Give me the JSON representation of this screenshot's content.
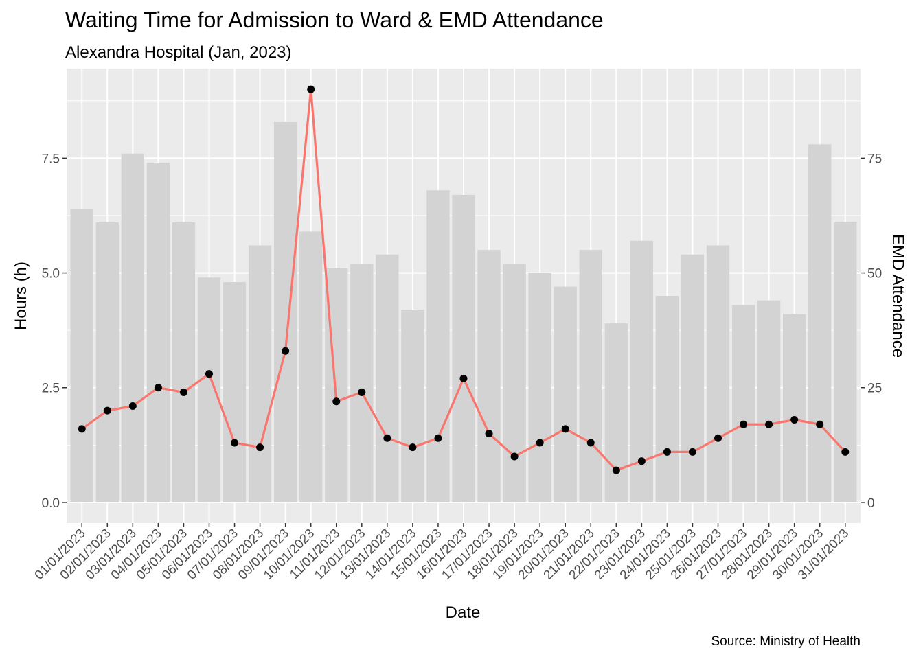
{
  "chart_data": {
    "type": "bar+line",
    "title": "Waiting Time for Admission to Ward & EMD Attendance",
    "subtitle": "Alexandra Hospital (Jan, 2023)",
    "xlabel": "Date",
    "ylabel": "Hours (h)",
    "y2label": "EMD Attendance",
    "caption": "Source: Ministry of Health",
    "categories": [
      "01/01/2023",
      "02/01/2023",
      "03/01/2023",
      "04/01/2023",
      "05/01/2023",
      "06/01/2023",
      "07/01/2023",
      "08/01/2023",
      "09/01/2023",
      "10/01/2023",
      "11/01/2023",
      "12/01/2023",
      "13/01/2023",
      "14/01/2023",
      "15/01/2023",
      "16/01/2023",
      "17/01/2023",
      "18/01/2023",
      "19/01/2023",
      "20/01/2023",
      "21/01/2023",
      "22/01/2023",
      "23/01/2023",
      "24/01/2023",
      "25/01/2023",
      "26/01/2023",
      "27/01/2023",
      "28/01/2023",
      "29/01/2023",
      "30/01/2023",
      "31/01/2023"
    ],
    "series": [
      {
        "kind": "bar",
        "axis": "right",
        "color": "#d3d3d3",
        "values": [
          64,
          61,
          76,
          74,
          61,
          49,
          48,
          56,
          83,
          59,
          51,
          52,
          54,
          42,
          68,
          67,
          55,
          52,
          50,
          47,
          55,
          39,
          57,
          45,
          54,
          56,
          43,
          44,
          41,
          78,
          61
        ]
      },
      {
        "kind": "line",
        "axis": "left",
        "color": "#f8766d",
        "point_color": "#000000",
        "values": [
          1.6,
          2.0,
          2.1,
          2.5,
          2.4,
          2.8,
          1.3,
          1.2,
          3.3,
          9.0,
          2.2,
          2.4,
          1.4,
          1.2,
          1.4,
          2.7,
          1.5,
          1.0,
          1.3,
          1.6,
          1.3,
          0.7,
          0.9,
          1.1,
          1.1,
          1.4,
          1.7,
          1.7,
          1.8,
          1.7,
          1.1
        ]
      }
    ],
    "ylim": [
      -0.45,
      9.45
    ],
    "y2lim": [
      -4.5,
      94.5
    ],
    "yticks": [
      0,
      2.5,
      5,
      7.5
    ],
    "ytick_labels": [
      "0.0",
      "2.5",
      "5.0",
      "7.5"
    ],
    "y2ticks": [
      0,
      25,
      50,
      75
    ],
    "y2tick_labels": [
      "0",
      "25",
      "50",
      "75"
    ],
    "grid": true,
    "panel_background": "#ebebeb",
    "grid_color": "#ffffff"
  }
}
